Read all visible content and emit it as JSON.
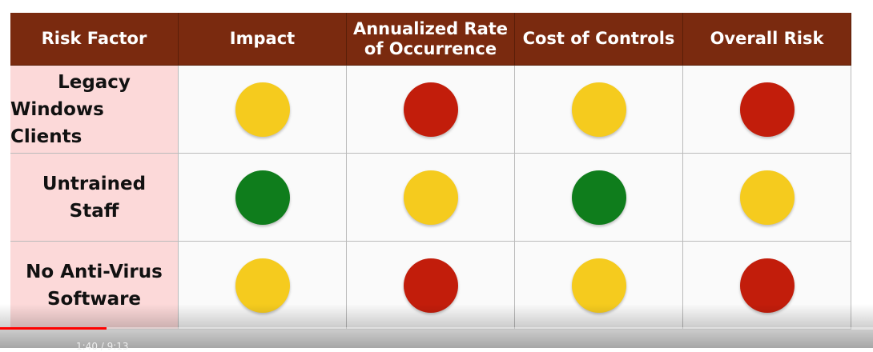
{
  "table": {
    "header": [
      [
        "Risk Factor"
      ],
      [
        "Impact"
      ],
      [
        "Annualized Rate",
        "of Occurrence"
      ],
      [
        "Cost of Controls"
      ],
      [
        "Overall Risk"
      ]
    ],
    "rows": [
      {
        "label": [
          "Legacy",
          "Windows Clients"
        ],
        "cells": [
          "#f5cb1e",
          "#c21d0b",
          "#f5cb1e",
          "#c21d0b"
        ]
      },
      {
        "label": [
          "Untrained",
          "Staff"
        ],
        "cells": [
          "#0f7d1c",
          "#f5cb1e",
          "#0f7d1c",
          "#f5cb1e"
        ]
      },
      {
        "label": [
          "No Anti-Virus",
          "Software"
        ],
        "cells": [
          "#f5cb1e",
          "#c21d0b",
          "#f5cb1e",
          "#c21d0b"
        ]
      }
    ]
  },
  "player": {
    "time": "1:40 / 9:13"
  }
}
